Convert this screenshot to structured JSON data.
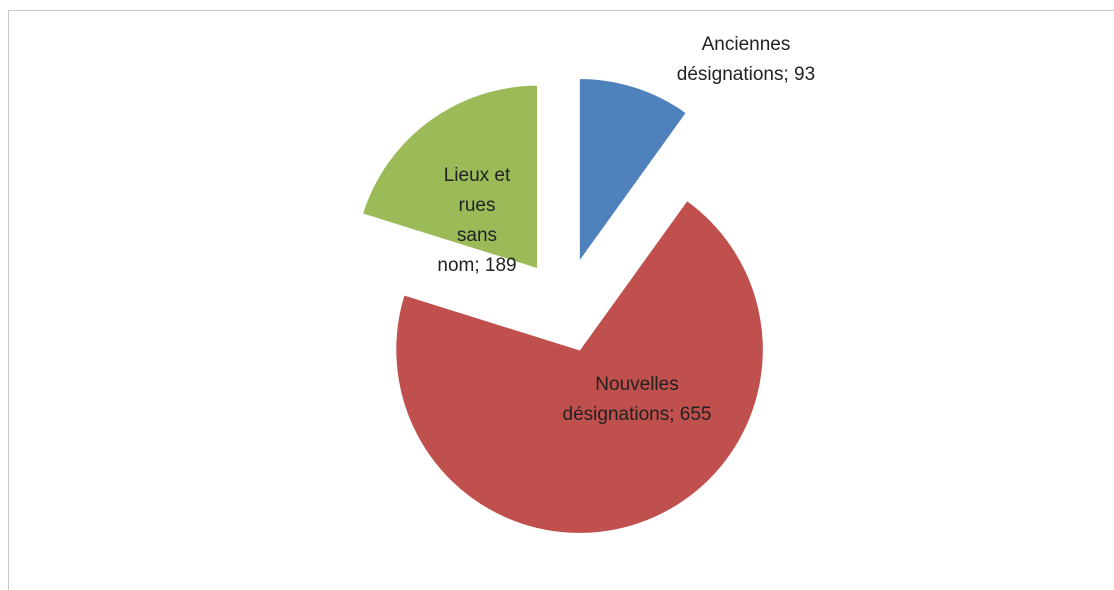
{
  "chart_data": {
    "type": "pie",
    "categories": [
      "Anciennes désignations",
      "Nouvelles désignations",
      "Lieux et rues sans nom"
    ],
    "values": [
      93,
      655,
      189
    ],
    "colors": [
      "#4f81bd",
      "#c0504d",
      "#9bbb59"
    ],
    "exploded": true,
    "label_separator": "; "
  }
}
